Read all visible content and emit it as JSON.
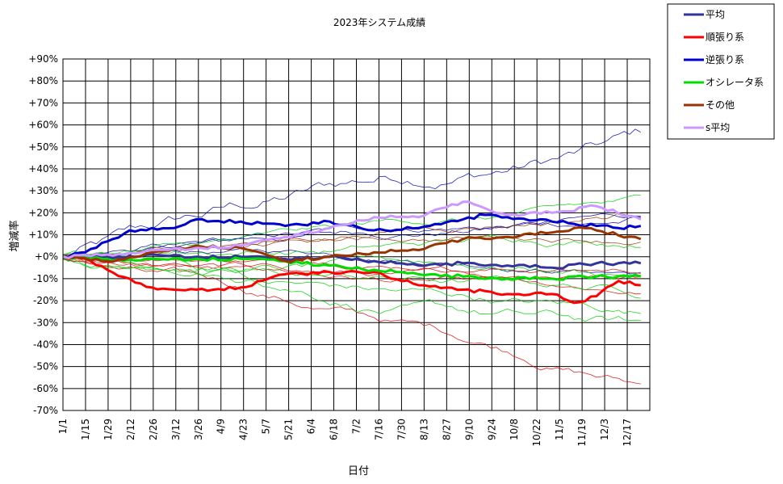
{
  "chart_data": {
    "type": "line",
    "title": "2023年システム成績",
    "xlabel": "日付",
    "ylabel": "増減率",
    "ylim": [
      -70,
      90
    ],
    "yticks": [
      "+90%",
      "+80%",
      "+70%",
      "+60%",
      "+50%",
      "+40%",
      "+30%",
      "+20%",
      "+10%",
      "+0%",
      "-10%",
      "-20%",
      "-30%",
      "-40%",
      "-50%",
      "-60%",
      "-70%"
    ],
    "xticks": [
      "1/1",
      "1/15",
      "1/29",
      "2/12",
      "2/26",
      "3/12",
      "3/26",
      "4/9",
      "4/23",
      "5/7",
      "5/21",
      "6/4",
      "6/18",
      "7/2",
      "7/16",
      "7/30",
      "8/13",
      "8/27",
      "9/10",
      "9/24",
      "10/8",
      "10/22",
      "11/5",
      "11/19",
      "12/3",
      "12/17"
    ],
    "grid": true,
    "legend_position": "top-right",
    "series": [
      {
        "name": "平均",
        "color": "#333399",
        "x_week": [
          0,
          4,
          8,
          12,
          16,
          20,
          24,
          28,
          32,
          36,
          40,
          44,
          48,
          52
        ],
        "values": [
          0,
          0,
          1,
          0,
          0,
          -1,
          0,
          -2,
          -4,
          -3,
          -4,
          -5,
          -3,
          -3
        ]
      },
      {
        "name": "順張り系",
        "color": "#ff0000",
        "x_week": [
          0,
          2,
          4,
          6,
          8,
          10,
          12,
          16,
          20,
          24,
          28,
          32,
          36,
          40,
          44,
          46,
          48,
          50,
          52
        ],
        "values": [
          0,
          -1,
          -6,
          -10,
          -14,
          -15,
          -15,
          -14,
          -8,
          -7,
          -7,
          -13,
          -15,
          -17,
          -17,
          -21,
          -18,
          -11,
          -13
        ]
      },
      {
        "name": "逆張り系",
        "color": "#0000cc",
        "x_week": [
          0,
          2,
          4,
          6,
          8,
          10,
          12,
          16,
          20,
          24,
          28,
          32,
          36,
          38,
          40,
          44,
          48,
          50,
          52
        ],
        "values": [
          0,
          2,
          7,
          12,
          13,
          13,
          17,
          16,
          14,
          16,
          12,
          13,
          17,
          19,
          18,
          16,
          14,
          13,
          14
        ]
      },
      {
        "name": "オシレータ系",
        "color": "#00dd00",
        "x_week": [
          0,
          4,
          8,
          12,
          16,
          20,
          24,
          28,
          32,
          36,
          40,
          44,
          48,
          52
        ],
        "values": [
          0,
          -1,
          -1,
          -1,
          -1,
          -2,
          -4,
          -6,
          -8,
          -9,
          -10,
          -10,
          -9,
          -9
        ]
      },
      {
        "name": "その他",
        "color": "#993300",
        "x_week": [
          0,
          4,
          8,
          12,
          16,
          20,
          24,
          28,
          32,
          34,
          36,
          40,
          44,
          46,
          48,
          52
        ],
        "values": [
          0,
          -2,
          2,
          5,
          4,
          -2,
          0,
          2,
          3,
          6,
          8,
          9,
          11,
          13,
          12,
          8
        ]
      },
      {
        "name": "s平均",
        "color": "#cc99ff",
        "x_week": [
          0,
          4,
          8,
          12,
          16,
          20,
          24,
          28,
          32,
          34,
          36,
          38,
          40,
          44,
          48,
          52
        ],
        "values": [
          0,
          1,
          3,
          4,
          5,
          9,
          13,
          18,
          18,
          22,
          25,
          22,
          19,
          20,
          23,
          17
        ]
      }
    ]
  }
}
